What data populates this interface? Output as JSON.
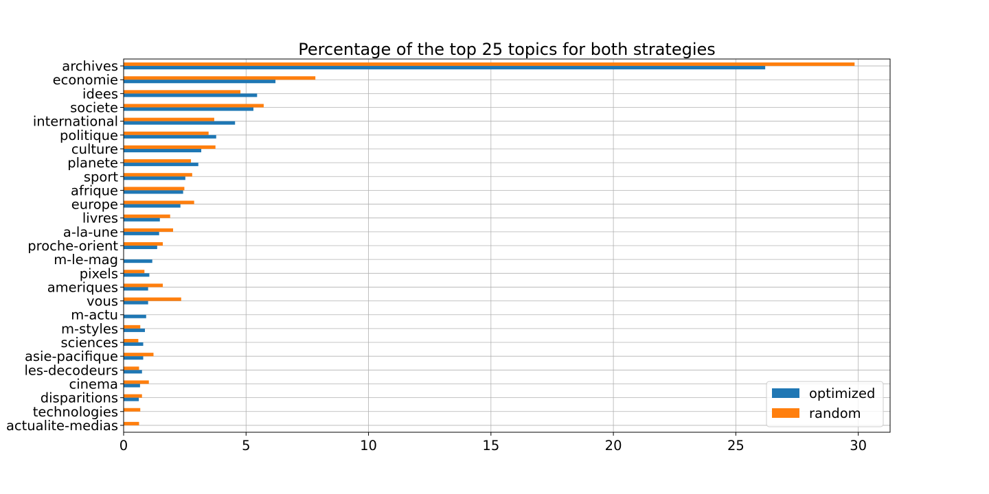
{
  "chart_data": {
    "type": "bar",
    "orientation": "horizontal",
    "title": "Percentage of the top 25 topics for both strategies",
    "xlabel": "",
    "ylabel": "",
    "xlim": [
      0,
      31.3
    ],
    "xticks": [
      0,
      5,
      10,
      15,
      20,
      25,
      30
    ],
    "grid": true,
    "legend_position": "lower-right",
    "categories": [
      "archives",
      "economie",
      "idees",
      "societe",
      "international",
      "politique",
      "culture",
      "planete",
      "sport",
      "afrique",
      "europe",
      "livres",
      "a-la-une",
      "proche-orient",
      "m-le-mag",
      "pixels",
      "ameriques",
      "vous",
      "m-actu",
      "m-styles",
      "sciences",
      "asie-pacifique",
      "les-decodeurs",
      "cinema",
      "disparitions",
      "technologies",
      "actualite-medias"
    ],
    "series": [
      {
        "name": "optimized",
        "color": "#1f77b4",
        "values": [
          26.2,
          6.2,
          5.45,
          5.3,
          4.55,
          3.78,
          3.17,
          3.05,
          2.52,
          2.43,
          2.32,
          1.48,
          1.45,
          1.37,
          1.17,
          1.05,
          1.0,
          1.0,
          0.92,
          0.87,
          0.8,
          0.8,
          0.75,
          0.67,
          0.62,
          0.0,
          0.0
        ]
      },
      {
        "name": "random",
        "color": "#ff7f0e",
        "values": [
          29.85,
          7.83,
          4.77,
          5.72,
          3.7,
          3.47,
          3.75,
          2.75,
          2.8,
          2.48,
          2.88,
          1.9,
          2.02,
          1.6,
          0.0,
          0.85,
          1.6,
          2.35,
          0.0,
          0.68,
          0.6,
          1.22,
          0.63,
          1.03,
          0.75,
          0.68,
          0.63
        ]
      }
    ]
  }
}
